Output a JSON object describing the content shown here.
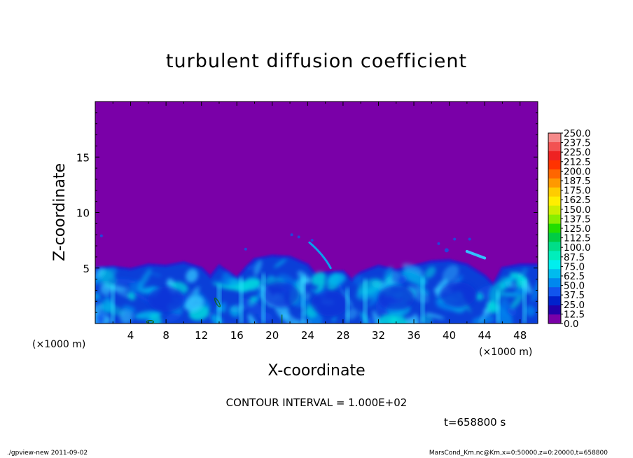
{
  "chart_data": {
    "type": "heatmap",
    "title": "turbulent diffusion coefficient",
    "xlabel": "X-coordinate",
    "ylabel": "Z-coordinate",
    "x_unit": "(×1000 m)",
    "y_unit": "(×1000 m)",
    "xlim": [
      0,
      50
    ],
    "ylim": [
      0,
      20
    ],
    "xticks": [
      4,
      8,
      12,
      16,
      20,
      24,
      28,
      32,
      36,
      40,
      44,
      48
    ],
    "yticks": [
      5,
      10,
      15
    ],
    "colorbar": {
      "levels": [
        "250.0",
        "237.5",
        "225.0",
        "212.5",
        "200.0",
        "187.5",
        "175.0",
        "162.5",
        "150.0",
        "137.5",
        "125.0",
        "112.5",
        "100.0",
        "87.5",
        "75.0",
        "62.5",
        "50.0",
        "37.5",
        "25.0",
        "12.5",
        "0.0"
      ],
      "colors": [
        "#f58a8a",
        "#f25252",
        "#ee2222",
        "#ff3300",
        "#ff6600",
        "#ff9900",
        "#ffcc00",
        "#ffee00",
        "#ccee00",
        "#88ee00",
        "#22dd00",
        "#00cc44",
        "#00dd88",
        "#00eebb",
        "#00eeee",
        "#00bbee",
        "#0088ee",
        "#1155ee",
        "#0022cc",
        "#2200aa",
        "#7a00a8"
      ]
    },
    "mixed_layer_top": [
      [
        0,
        5.0
      ],
      [
        2,
        5.1
      ],
      [
        4,
        4.9
      ],
      [
        6,
        5.3
      ],
      [
        8,
        5.2
      ],
      [
        10,
        5.5
      ],
      [
        12,
        5.0
      ],
      [
        13,
        4.2
      ],
      [
        14,
        5.2
      ],
      [
        16,
        4.1
      ],
      [
        17,
        5.0
      ],
      [
        18,
        5.8
      ],
      [
        20,
        6.1
      ],
      [
        22,
        6.0
      ],
      [
        24,
        5.3
      ],
      [
        25,
        4.3
      ],
      [
        26,
        4.6
      ],
      [
        28,
        4.7
      ],
      [
        29,
        3.9
      ],
      [
        30,
        4.6
      ],
      [
        32,
        5.2
      ],
      [
        34,
        4.8
      ],
      [
        36,
        5.2
      ],
      [
        38,
        5.6
      ],
      [
        40,
        5.7
      ],
      [
        42,
        5.3
      ],
      [
        44,
        4.3
      ],
      [
        45,
        3.5
      ],
      [
        46,
        5.0
      ],
      [
        48,
        5.3
      ],
      [
        50,
        5.3
      ]
    ],
    "background_value": 0.0
  },
  "contour_interval": "CONTOUR INTERVAL = 1.000E+02",
  "time_label": "t=658800 s",
  "footer_left": "./gpview-new  2011-09-02",
  "footer_right": "MarsCond_Km.nc@Km,x=0:50000,z=0:20000,t=658800"
}
